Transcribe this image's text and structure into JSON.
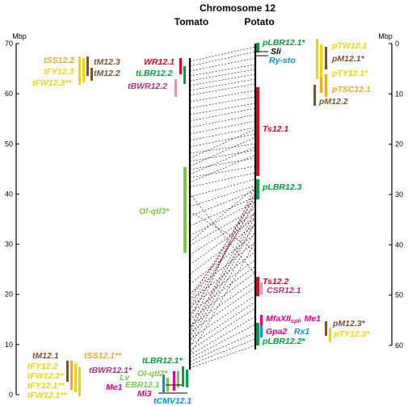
{
  "title": "Chromosome 12",
  "columns": {
    "tomato": "Tomato",
    "potato": "Potato"
  },
  "axes": {
    "left": {
      "unit": "Mbp",
      "min": 0,
      "max": 70,
      "ticks": [
        "0",
        "10",
        "20",
        "30",
        "40",
        "50",
        "60",
        "70"
      ]
    },
    "right": {
      "unit": "Mbp",
      "min": 0,
      "max": 60,
      "ticks": [
        "0",
        "10",
        "20",
        "30",
        "40",
        "50",
        "60"
      ]
    }
  },
  "tomato_labels": {
    "tSS12_2": "tSS12.2",
    "tM12_3": "tM12.3",
    "tFY12_3": "tFY12.3",
    "tM12_2": "tM12.2",
    "tFW12_3": "tFW12.3**",
    "WR12_1": "WR12.1",
    "tLBR12_2": "tLBR12.2",
    "tBWR12_2": "tBWR12.2",
    "Ol_qtl3": "Ol-qtl3*",
    "tM12_1": "tM12.1",
    "tSS12_1": "tSS12.1**",
    "tFY12_2": "tFY12.2",
    "tFW12_2": "tFW12.2*",
    "tFY12_1": "tFY12.1**",
    "tFW12_1": "tFW12.1**",
    "tLBR12_1": "tLBR12.1*",
    "tBWR12_1": "tBWR12.1*",
    "Ol_qtl2": "Ol-qtl2*",
    "Lv": "Lv",
    "EBR12_1": "EBR12.1",
    "Me1": "Me1",
    "Mi3": "Mi3",
    "tCMV12_1": "tCMV12.1"
  },
  "potato_labels": {
    "pLBR12_1": "pLBR12.1*",
    "Sli": "Sli",
    "Ry_sto": "Ry-sto",
    "pTW12_1": "pTW12.1",
    "pM12_1": "pM12.1*",
    "pTY12_1": "pTY12.1*",
    "pTSC12_1": "pTSC12.1",
    "pM12_2": "pM12.2",
    "Ts12_1": "Ts12.1",
    "pLBR12_3": "pLBR12.3",
    "Ts12_2": "Ts12.2",
    "CSR12_1": "CSR12.1",
    "MfaXII_main": "MfaXII",
    "MfaXII_sub": "spl",
    "MfaXII_rest": ", Me1",
    "pM12_3": "pM12.3*",
    "Gpa2": "Gpa2",
    "Rx1": "Rx1",
    "pTY12_3": "pTY12.3*",
    "pLBR12_2": "pLBR12.2*"
  },
  "colors": {
    "yellow": "#f5d300",
    "orange": "#f5a623",
    "brown": "#7a5230",
    "red": "#e8001c",
    "green": "#00a040",
    "lime": "#7ac943",
    "pink": "#e6007e",
    "purple": "#b5317a",
    "blue": "#0096d6",
    "black": "#000000"
  }
}
